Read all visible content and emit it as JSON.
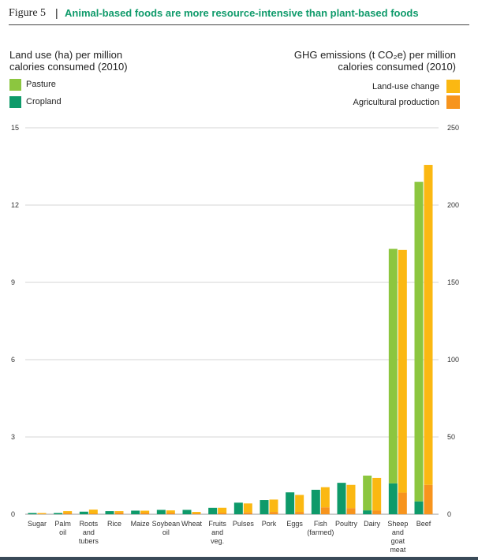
{
  "figure": {
    "number_label": "Figure 5",
    "separator": "|",
    "title": "Animal-based foods are more resource-intensive than plant-based foods"
  },
  "left_axis_title": [
    "Land use (ha) per million",
    "calories consumed (2010)"
  ],
  "right_axis_title": [
    "GHG emissions (t CO₂e) per million",
    "calories consumed (2010)"
  ],
  "legend_left": [
    {
      "label": "Pasture",
      "color": "#8cc63f"
    },
    {
      "label": "Cropland",
      "color": "#0e9a6a"
    }
  ],
  "legend_right": [
    {
      "label": "Land-use change",
      "color": "#fbb812"
    },
    {
      "label": "Agricultural production",
      "color": "#f7941d"
    }
  ],
  "chart_data": {
    "type": "bar",
    "categories": [
      [
        "Sugar"
      ],
      [
        "Palm",
        "oil"
      ],
      [
        "Roots",
        "and",
        "tubers"
      ],
      [
        "Rice"
      ],
      [
        "Maize"
      ],
      [
        "Soybean",
        "oil"
      ],
      [
        "Wheat"
      ],
      [
        "Fruits",
        "and",
        "veg."
      ],
      [
        "Pulses"
      ],
      [
        "Pork"
      ],
      [
        "Eggs"
      ],
      [
        "Fish",
        "(farmed)"
      ],
      [
        "Poultry"
      ],
      [
        "Dairy"
      ],
      [
        "Sheep",
        "and",
        "goat",
        "meat"
      ],
      [
        "Beef"
      ]
    ],
    "left_axis": {
      "ylim": [
        0,
        15
      ],
      "ticks": [
        "0",
        "3",
        "6",
        "9",
        "12",
        "15"
      ]
    },
    "right_axis": {
      "ylim": [
        0,
        250
      ],
      "ticks": [
        "0",
        "50",
        "100",
        "150",
        "200",
        "250"
      ]
    },
    "land_use_series": [
      {
        "name": "Pasture",
        "values": [
          0,
          0,
          0,
          0,
          0,
          0,
          0,
          0,
          0,
          0,
          0,
          0,
          0,
          1.35,
          9.1,
          12.4
        ]
      },
      {
        "name": "Cropland",
        "values": [
          0.05,
          0.05,
          0.1,
          0.12,
          0.14,
          0.17,
          0.17,
          0.25,
          0.45,
          0.55,
          0.85,
          0.95,
          1.22,
          0.15,
          1.2,
          0.5
        ]
      }
    ],
    "ghg_series": [
      {
        "name": "Land-use change",
        "values": [
          0.5,
          1.2,
          2.5,
          0.8,
          1.3,
          1.5,
          1.0,
          3.2,
          5.8,
          8.0,
          11.0,
          13.0,
          15.0,
          21.0,
          157.0,
          207.0
        ]
      },
      {
        "name": "Agricultural production",
        "values": [
          0.3,
          0.8,
          0.5,
          1.2,
          1.0,
          1.0,
          0.5,
          1.0,
          1.2,
          1.5,
          1.5,
          4.5,
          4.0,
          2.5,
          14.0,
          19.0
        ]
      }
    ]
  }
}
